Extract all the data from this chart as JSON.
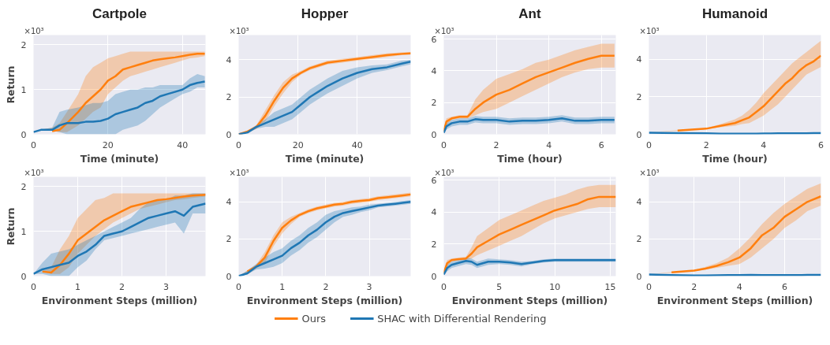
{
  "chart_data": [
    {
      "type": "line",
      "title": "Cartpole",
      "xlabel": "Time (minute)",
      "ylabel": "Return",
      "annotations": [
        "×10³"
      ],
      "grid": true,
      "legend": "bottom",
      "xlim": [
        0,
        46.2
      ],
      "ylim": [
        0,
        2.22
      ],
      "xticks": [
        0,
        20,
        40
      ],
      "yticks": [
        0,
        1,
        2
      ],
      "x": [
        0,
        2,
        5,
        7,
        9,
        12,
        14,
        16,
        18,
        20,
        22,
        24,
        26,
        28,
        30,
        32,
        34,
        36,
        38,
        40,
        42,
        44,
        46
      ],
      "series": [
        {
          "name": "Ours",
          "color": "#ff7f0e",
          "values": [
            null,
            null,
            0.07,
            0.1,
            0.25,
            0.5,
            0.7,
            0.85,
            1.0,
            1.2,
            1.3,
            1.45,
            1.5,
            1.55,
            1.6,
            1.65,
            1.68,
            1.7,
            1.72,
            1.75,
            1.78,
            1.8,
            1.8
          ],
          "lower": [
            0.05,
            0.1,
            0.08,
            0.05,
            0.05,
            0.2,
            0.35,
            0.5,
            0.6,
            0.9,
            1.05,
            1.2,
            1.3,
            1.35,
            1.4,
            1.45,
            1.5,
            1.55,
            1.6,
            1.65,
            1.7,
            1.72,
            1.75
          ],
          "upper": [
            0.05,
            0.1,
            0.15,
            0.25,
            0.5,
            0.9,
            1.3,
            1.5,
            1.6,
            1.7,
            1.75,
            1.8,
            1.85,
            1.85,
            1.85,
            1.85,
            1.85,
            1.85,
            1.85,
            1.85,
            1.85,
            1.85,
            1.85
          ]
        },
        {
          "name": "SHAC with Differential Rendering",
          "color": "#1f77b4",
          "values": [
            0.05,
            0.1,
            0.1,
            0.2,
            0.25,
            0.25,
            0.28,
            0.28,
            0.3,
            0.35,
            0.45,
            0.5,
            0.55,
            0.6,
            0.7,
            0.75,
            0.85,
            0.9,
            0.95,
            1.0,
            1.1,
            1.15,
            1.18
          ],
          "lower": [
            0.05,
            0.1,
            0.08,
            0.05,
            0,
            0,
            0,
            0,
            0,
            0,
            0,
            0.1,
            0.15,
            0.2,
            0.3,
            0.45,
            0.6,
            0.7,
            0.8,
            0.9,
            0.95,
            1.05,
            1.05
          ],
          "upper": [
            0.05,
            0.1,
            0.15,
            0.5,
            0.55,
            0.6,
            0.65,
            0.7,
            0.7,
            0.75,
            0.9,
            0.95,
            1.0,
            1.0,
            1.05,
            1.05,
            1.1,
            1.1,
            1.1,
            1.1,
            1.25,
            1.35,
            1.3
          ]
        }
      ]
    },
    {
      "type": "line",
      "title": "Hopper",
      "xlabel": "Time (minute)",
      "annotations": [
        "×10³"
      ],
      "grid": true,
      "xlim": [
        0,
        58
      ],
      "ylim": [
        0,
        5.33
      ],
      "xticks": [
        0,
        20,
        40
      ],
      "yticks": [
        0,
        2,
        4
      ],
      "x": [
        0,
        3,
        6,
        9,
        12,
        15,
        18,
        21,
        24,
        27,
        30,
        35,
        40,
        45,
        50,
        55,
        58
      ],
      "series": [
        {
          "color": "#ff7f0e",
          "values": [
            0,
            0.15,
            0.4,
            1.0,
            1.8,
            2.5,
            3.0,
            3.3,
            3.55,
            3.7,
            3.85,
            3.95,
            4.05,
            4.15,
            4.25,
            4.32,
            4.35
          ],
          "lower": [
            0,
            0.1,
            0.3,
            0.7,
            1.5,
            2.2,
            2.8,
            3.2,
            3.45,
            3.6,
            3.75,
            3.85,
            3.95,
            4.05,
            4.15,
            4.25,
            4.28
          ],
          "upper": [
            0,
            0.2,
            0.5,
            1.3,
            2.1,
            2.8,
            3.2,
            3.4,
            3.65,
            3.8,
            3.95,
            4.05,
            4.15,
            4.25,
            4.35,
            4.4,
            4.42
          ]
        },
        {
          "color": "#1f77b4",
          "values": [
            0,
            0.1,
            0.4,
            0.6,
            0.8,
            1.0,
            1.2,
            1.6,
            2.0,
            2.3,
            2.6,
            3.0,
            3.3,
            3.5,
            3.6,
            3.8,
            3.9
          ],
          "lower": [
            0,
            0.05,
            0.3,
            0.4,
            0.4,
            0.6,
            0.8,
            1.2,
            1.6,
            1.9,
            2.2,
            2.6,
            3.0,
            3.3,
            3.45,
            3.65,
            3.75
          ],
          "upper": [
            0,
            0.15,
            0.5,
            0.8,
            1.2,
            1.4,
            1.6,
            2.0,
            2.4,
            2.7,
            3.0,
            3.4,
            3.6,
            3.7,
            3.75,
            3.95,
            4.0
          ]
        }
      ]
    },
    {
      "type": "line",
      "title": "Ant",
      "xlabel": "Time (hour)",
      "annotations": [
        "×10³"
      ],
      "grid": true,
      "xlim": [
        0,
        6.55
      ],
      "ylim": [
        0,
        6.25
      ],
      "xticks": [
        0,
        2,
        4,
        6
      ],
      "yticks": [
        0,
        2,
        4,
        6
      ],
      "x": [
        0,
        0.1,
        0.3,
        0.6,
        0.9,
        1.2,
        1.5,
        2,
        2.5,
        3,
        3.5,
        4,
        4.5,
        5,
        5.5,
        6,
        6.5
      ],
      "series": [
        {
          "color": "#ff7f0e",
          "values": [
            0.2,
            0.8,
            1.0,
            1.1,
            1.1,
            1.6,
            2.0,
            2.5,
            2.8,
            3.2,
            3.6,
            3.9,
            4.2,
            4.5,
            4.75,
            4.95,
            4.95
          ],
          "lower": [
            0.1,
            0.6,
            0.9,
            1.0,
            1.0,
            1.2,
            1.4,
            1.6,
            2.0,
            2.4,
            2.8,
            3.2,
            3.6,
            3.9,
            4.1,
            4.2,
            4.2
          ],
          "upper": [
            0.3,
            1.0,
            1.1,
            1.2,
            1.2,
            2.2,
            2.8,
            3.5,
            3.8,
            4.1,
            4.5,
            4.7,
            5.0,
            5.3,
            5.5,
            5.7,
            5.7
          ]
        },
        {
          "color": "#1f77b4",
          "values": [
            0.1,
            0.5,
            0.7,
            0.8,
            0.8,
            0.95,
            0.9,
            0.9,
            0.8,
            0.85,
            0.85,
            0.9,
            1.0,
            0.85,
            0.85,
            0.9,
            0.9
          ],
          "lower": [
            0.05,
            0.3,
            0.5,
            0.6,
            0.6,
            0.75,
            0.7,
            0.7,
            0.6,
            0.65,
            0.65,
            0.7,
            0.8,
            0.65,
            0.65,
            0.7,
            0.7
          ],
          "upper": [
            0.15,
            0.7,
            0.9,
            1.0,
            1.0,
            1.15,
            1.1,
            1.1,
            1.0,
            1.05,
            1.05,
            1.1,
            1.2,
            1.05,
            1.05,
            1.1,
            1.1
          ]
        }
      ]
    },
    {
      "type": "line",
      "title": "Humanoid",
      "xlabel": "Time (hour)",
      "annotations": [
        "×10³"
      ],
      "grid": true,
      "xlim": [
        0,
        6
      ],
      "ylim": [
        0,
        5.3
      ],
      "xticks": [
        0,
        2,
        4,
        6
      ],
      "yticks": [
        0,
        2,
        4
      ],
      "x": [
        0,
        1,
        2,
        2.5,
        3,
        3.25,
        3.5,
        3.75,
        4,
        4.25,
        4.5,
        4.75,
        5,
        5.25,
        5.5,
        5.75,
        6
      ],
      "series": [
        {
          "color": "#ff7f0e",
          "values": [
            null,
            0.2,
            0.3,
            0.45,
            0.6,
            0.75,
            0.9,
            1.2,
            1.5,
            1.9,
            2.3,
            2.7,
            3.0,
            3.4,
            3.7,
            3.9,
            4.2
          ],
          "lower": [
            0.1,
            0.18,
            0.27,
            0.38,
            0.45,
            0.55,
            0.6,
            0.8,
            1.0,
            1.3,
            1.6,
            2.0,
            2.4,
            2.8,
            3.2,
            3.4,
            3.6
          ],
          "upper": [
            0.1,
            0.22,
            0.33,
            0.55,
            0.8,
            1.0,
            1.3,
            1.7,
            2.2,
            2.6,
            3.0,
            3.4,
            3.8,
            4.1,
            4.4,
            4.7,
            5.0
          ]
        },
        {
          "color": "#1f77b4",
          "values": [
            0.08,
            0.06,
            0.05,
            0.03,
            0.03,
            0.03,
            0.03,
            0.03,
            0.04,
            0.04,
            0.05,
            0.05,
            0.05,
            0.05,
            0.05,
            0.06,
            0.06
          ]
        }
      ]
    },
    {
      "type": "line",
      "xlabel": "Environment Steps (million)",
      "ylabel": "Return",
      "annotations": [
        "×10³"
      ],
      "grid": true,
      "xlim": [
        0,
        3.89
      ],
      "ylim": [
        0,
        2.22
      ],
      "xticks": [
        0,
        1,
        2,
        3
      ],
      "yticks": [
        0,
        1,
        2
      ],
      "x": [
        0,
        0.2,
        0.4,
        0.6,
        0.8,
        1.0,
        1.2,
        1.4,
        1.6,
        1.8,
        2.0,
        2.2,
        2.4,
        2.6,
        2.8,
        3.0,
        3.2,
        3.4,
        3.6,
        3.89
      ],
      "series": [
        {
          "color": "#ff7f0e",
          "values": [
            null,
            0.1,
            0.08,
            0.25,
            0.5,
            0.8,
            0.95,
            1.1,
            1.25,
            1.35,
            1.45,
            1.55,
            1.6,
            1.65,
            1.7,
            1.72,
            1.75,
            1.78,
            1.8,
            1.82
          ],
          "lower": [
            0.05,
            0.1,
            0.05,
            0.05,
            0.2,
            0.5,
            0.7,
            0.9,
            1.05,
            1.2,
            1.3,
            1.4,
            1.5,
            1.55,
            1.6,
            1.65,
            1.7,
            1.72,
            1.75,
            1.78
          ],
          "upper": [
            0.05,
            0.1,
            0.2,
            0.6,
            0.9,
            1.3,
            1.5,
            1.7,
            1.75,
            1.85,
            1.85,
            1.85,
            1.85,
            1.85,
            1.85,
            1.85,
            1.85,
            1.85,
            1.85,
            1.85
          ]
        },
        {
          "color": "#1f77b4",
          "values": [
            0.05,
            0.15,
            0.2,
            0.25,
            0.3,
            0.45,
            0.55,
            0.7,
            0.9,
            0.95,
            1.0,
            1.1,
            1.2,
            1.3,
            1.35,
            1.4,
            1.45,
            1.35,
            1.55,
            1.62
          ],
          "lower": [
            0.05,
            0.05,
            0,
            0,
            0,
            0.2,
            0.35,
            0.6,
            0.8,
            0.85,
            0.9,
            0.95,
            1.0,
            1.05,
            1.1,
            1.15,
            1.2,
            0.95,
            1.4,
            1.4
          ],
          "upper": [
            0.05,
            0.3,
            0.5,
            0.55,
            0.6,
            0.7,
            0.8,
            0.9,
            1.0,
            1.1,
            1.2,
            1.3,
            1.5,
            1.65,
            1.7,
            1.7,
            1.8,
            1.8,
            1.85,
            1.85
          ]
        }
      ]
    },
    {
      "type": "line",
      "xlabel": "Environment Steps (million)",
      "annotations": [
        "×10³"
      ],
      "grid": true,
      "xlim": [
        0,
        3.95
      ],
      "ylim": [
        0,
        5.35
      ],
      "xticks": [
        0,
        1,
        2,
        3
      ],
      "yticks": [
        0,
        2,
        4
      ],
      "x": [
        0,
        0.2,
        0.4,
        0.6,
        0.8,
        1.0,
        1.2,
        1.4,
        1.6,
        1.8,
        2.0,
        2.2,
        2.4,
        2.6,
        2.8,
        3.0,
        3.2,
        3.4,
        3.6,
        3.95
      ],
      "series": [
        {
          "color": "#ff7f0e",
          "values": [
            null,
            0.25,
            0.5,
            1.0,
            1.9,
            2.6,
            3.0,
            3.3,
            3.5,
            3.65,
            3.75,
            3.85,
            3.9,
            4.0,
            4.05,
            4.1,
            4.2,
            4.25,
            4.3,
            4.4
          ],
          "lower": [
            0,
            0.1,
            0.4,
            0.7,
            1.6,
            2.3,
            2.8,
            3.2,
            3.4,
            3.55,
            3.65,
            3.75,
            3.8,
            3.9,
            3.95,
            4.0,
            4.1,
            4.15,
            4.2,
            4.3
          ],
          "upper": [
            0,
            0.3,
            0.6,
            1.3,
            2.2,
            2.9,
            3.2,
            3.4,
            3.6,
            3.75,
            3.85,
            3.95,
            4.0,
            4.1,
            4.15,
            4.2,
            4.3,
            4.35,
            4.4,
            4.5
          ]
        },
        {
          "color": "#1f77b4",
          "values": [
            0,
            0.15,
            0.5,
            0.7,
            0.9,
            1.1,
            1.5,
            1.8,
            2.2,
            2.5,
            2.9,
            3.2,
            3.4,
            3.5,
            3.6,
            3.7,
            3.8,
            3.85,
            3.9,
            4.0
          ],
          "lower": [
            0,
            0.1,
            0.35,
            0.4,
            0.5,
            0.7,
            1.1,
            1.4,
            1.8,
            2.1,
            2.5,
            2.9,
            3.2,
            3.3,
            3.45,
            3.55,
            3.7,
            3.75,
            3.8,
            3.9
          ],
          "upper": [
            0,
            0.3,
            0.65,
            1.0,
            1.3,
            1.5,
            1.9,
            2.2,
            2.6,
            2.9,
            3.3,
            3.5,
            3.6,
            3.7,
            3.75,
            3.85,
            3.9,
            3.95,
            4.0,
            4.1
          ]
        }
      ]
    },
    {
      "type": "line",
      "xlabel": "Environment Steps (million)",
      "annotations": [
        "×10³"
      ],
      "grid": true,
      "xlim": [
        0,
        15.5
      ],
      "ylim": [
        0,
        6.2
      ],
      "xticks": [
        0,
        5,
        10,
        15
      ],
      "yticks": [
        0,
        2,
        4,
        6
      ],
      "x": [
        0,
        0.3,
        0.7,
        1.2,
        2,
        2.5,
        3,
        4,
        5,
        6,
        7,
        8,
        9,
        10,
        11,
        12,
        13,
        14,
        15.5
      ],
      "series": [
        {
          "color": "#ff7f0e",
          "values": [
            0.2,
            0.8,
            1.0,
            1.05,
            1.1,
            1.4,
            1.8,
            2.2,
            2.6,
            2.9,
            3.2,
            3.5,
            3.8,
            4.1,
            4.3,
            4.5,
            4.8,
            4.95,
            4.95
          ],
          "lower": [
            0.1,
            0.6,
            0.9,
            1.0,
            1.0,
            1.1,
            1.3,
            1.6,
            1.9,
            2.2,
            2.5,
            2.9,
            3.3,
            3.6,
            3.8,
            4.0,
            4.2,
            4.3,
            4.3
          ],
          "upper": [
            0.3,
            1.0,
            1.1,
            1.15,
            1.2,
            1.8,
            2.5,
            3.0,
            3.5,
            3.8,
            4.1,
            4.4,
            4.7,
            4.9,
            5.1,
            5.4,
            5.6,
            5.7,
            5.7
          ]
        },
        {
          "color": "#1f77b4",
          "values": [
            0.1,
            0.5,
            0.7,
            0.8,
            0.95,
            0.9,
            0.7,
            0.9,
            0.9,
            0.85,
            0.75,
            0.85,
            0.95,
            1.0,
            1.0,
            1.0,
            1.0,
            1.0,
            1.0
          ],
          "lower": [
            0.05,
            0.3,
            0.5,
            0.6,
            0.75,
            0.7,
            0.5,
            0.7,
            0.75,
            0.7,
            0.6,
            0.75,
            0.85,
            0.9,
            0.9,
            0.9,
            0.9,
            0.9,
            0.9
          ],
          "upper": [
            0.15,
            0.7,
            0.9,
            1.0,
            1.15,
            1.1,
            0.9,
            1.1,
            1.05,
            1.0,
            0.9,
            0.95,
            1.05,
            1.1,
            1.1,
            1.1,
            1.1,
            1.1,
            1.1
          ]
        }
      ]
    },
    {
      "type": "line",
      "xlabel": "Environment Steps (million)",
      "annotations": [
        "×10³"
      ],
      "grid": true,
      "xlim": [
        0,
        7.6
      ],
      "ylim": [
        0,
        5.35
      ],
      "xticks": [
        0,
        2,
        4,
        6
      ],
      "yticks": [
        0,
        2,
        4
      ],
      "x": [
        0,
        1,
        2,
        2.5,
        3,
        3.5,
        4,
        4.5,
        5,
        5.5,
        6,
        6.5,
        7,
        7.6
      ],
      "series": [
        {
          "color": "#ff7f0e",
          "values": [
            null,
            0.2,
            0.3,
            0.4,
            0.55,
            0.75,
            1.0,
            1.5,
            2.2,
            2.6,
            3.2,
            3.6,
            4.0,
            4.3
          ],
          "lower": [
            0.1,
            0.18,
            0.27,
            0.35,
            0.45,
            0.55,
            0.65,
            1.0,
            1.5,
            2.0,
            2.6,
            3.0,
            3.5,
            3.8
          ],
          "upper": [
            0.1,
            0.22,
            0.33,
            0.5,
            0.7,
            1.0,
            1.5,
            2.1,
            2.8,
            3.4,
            3.9,
            4.3,
            4.7,
            5.0
          ]
        },
        {
          "color": "#1f77b4",
          "values": [
            0.08,
            0.05,
            0.03,
            0.03,
            0.04,
            0.05,
            0.05,
            0.06,
            0.05,
            0.05,
            0.05,
            0.05,
            0.06,
            0.06
          ]
        }
      ]
    }
  ]
}
